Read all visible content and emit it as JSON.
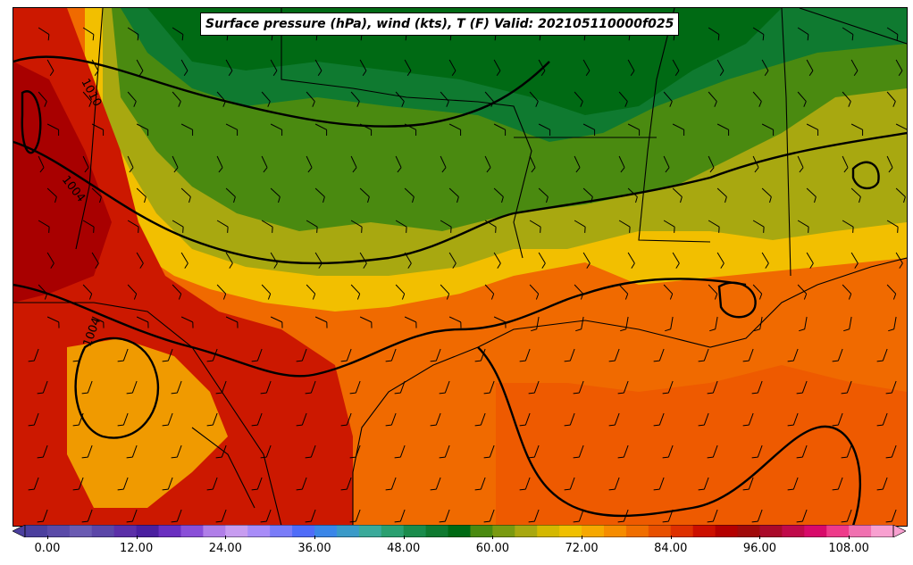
{
  "title": "Surface pressure (hPa), wind (kts), T (F) Valid: 202105110000f025",
  "isobar_labels": [
    "1010",
    "1004",
    "1004"
  ],
  "colorbar": {
    "ticks": [
      "0.00",
      "12.00",
      "24.00",
      "36.00",
      "48.00",
      "60.00",
      "72.00",
      "84.00",
      "96.00",
      "108.00"
    ],
    "colors": [
      "#4b3f9e",
      "#5a4aa8",
      "#6a5bb2",
      "#5b46a8",
      "#5b2fa8",
      "#4a1fa0",
      "#6a2fc0",
      "#8a4fd8",
      "#b07ee8",
      "#c79cf0",
      "#a88cf8",
      "#7a7cf8",
      "#4f6cf8",
      "#3a86e8",
      "#3a9ac8",
      "#3aaa9a",
      "#2aa070",
      "#1a8c4c",
      "#0f7a30",
      "#006a14",
      "#4a8a10",
      "#7a9a10",
      "#a8a810",
      "#d4b800",
      "#f0c000",
      "#f6a800",
      "#f68c00",
      "#f06e00",
      "#e85000",
      "#de3000",
      "#cc1000",
      "#b40000",
      "#a00a0a",
      "#aa0a2a",
      "#c00a4a",
      "#d80a6a",
      "#ee3a8a",
      "#f070b0",
      "#f8a0d0"
    ]
  },
  "legend_colors": {
    "background": "#ff6a00",
    "hot": "#cc1800",
    "warm": "#ef9d00",
    "mild": "#a8a810",
    "cool": "#4a8a10",
    "cold": "#006a14"
  }
}
